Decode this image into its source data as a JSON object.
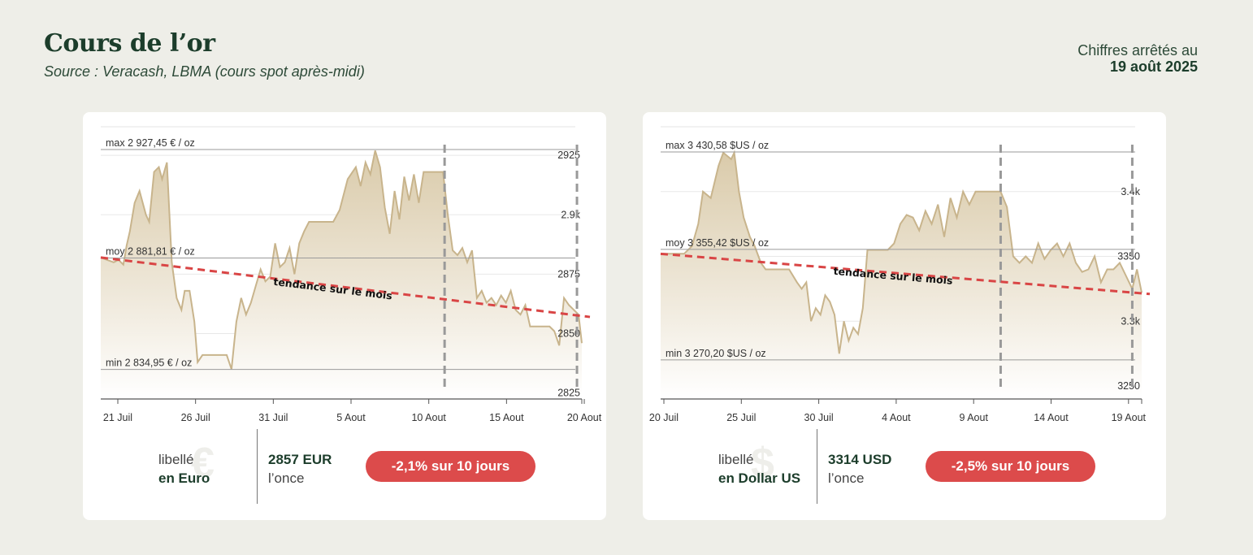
{
  "header": {
    "title": "Cours de l’or",
    "subtitle": "Source : Veracash, LBMA (cours spot après-midi)",
    "date_label": "Chiffres arrêtés au",
    "date_value": "19 août 2025"
  },
  "colors": {
    "line": "#c8b48c",
    "area_top": "#d8c8a6",
    "area_bottom": "#ffffff",
    "trend": "#d94545",
    "badge": "#dc4b4b",
    "vline": "#999999"
  },
  "chart_data": [
    {
      "type": "area",
      "id": "eur",
      "x_ticks": [
        "21 Juil",
        "26 Juil",
        "31 Juil",
        "5 Aout",
        "10 Aout",
        "15 Aout",
        "20 Aout"
      ],
      "x_range_days": [
        20.2,
        50.0
      ],
      "y_ticks": [
        {
          "value": 2825,
          "label": "2825"
        },
        {
          "value": 2850,
          "label": "2850"
        },
        {
          "value": 2875,
          "label": "2875"
        },
        {
          "value": 2900,
          "label": "2.9k"
        },
        {
          "value": 2925,
          "label": "2925"
        }
      ],
      "ylim": [
        2822.5,
        2937
      ],
      "ref_lines": [
        {
          "value": 2927.45,
          "label": "max 2 927,45 € / oz"
        },
        {
          "value": 2881.81,
          "label": "moy 2 881,81 € / oz"
        },
        {
          "value": 2834.95,
          "label": "min 2 834,95 € / oz"
        }
      ],
      "vlines_day": [
        41.5,
        49.7
      ],
      "trend": {
        "label": "tendance sur le mois",
        "start": 2882,
        "end": 2857
      },
      "series": {
        "x": [
          20.2,
          21.0,
          21.3,
          21.6,
          21.8,
          22.0,
          22.3,
          22.6,
          23.0,
          23.2,
          23.5,
          23.8,
          24.0,
          24.3,
          24.6,
          24.9,
          25.2,
          25.4,
          25.7,
          26.0,
          26.2,
          26.5,
          28.0,
          28.3,
          28.6,
          28.9,
          29.2,
          29.5,
          29.8,
          30.1,
          30.4,
          30.7,
          31.0,
          31.3,
          31.6,
          31.9,
          32.2,
          32.5,
          32.8,
          33.1,
          33.4,
          33.8,
          34.2,
          34.6,
          35.0,
          35.5,
          36.0,
          36.3,
          36.6,
          36.9,
          37.2,
          37.5,
          37.8,
          38.1,
          38.4,
          38.7,
          39.0,
          39.3,
          39.6,
          39.9,
          40.2,
          40.5,
          40.8,
          41.1,
          41.4,
          41.7,
          42.0,
          42.3,
          42.6,
          42.9,
          43.2,
          43.5,
          43.8,
          44.1,
          44.4,
          44.7,
          45.0,
          45.3,
          45.6,
          45.9,
          46.2,
          46.5,
          46.8,
          47.1,
          47.4,
          47.7,
          48.0,
          48.3,
          48.6,
          48.9,
          49.2,
          49.5,
          49.8,
          50.0
        ],
        "y": [
          2882,
          2880,
          2881,
          2879,
          2887,
          2893,
          2905,
          2910,
          2900,
          2897,
          2918,
          2920,
          2915,
          2922,
          2880,
          2865,
          2860,
          2868,
          2868,
          2855,
          2838,
          2841,
          2841,
          2835,
          2855,
          2865,
          2858,
          2863,
          2870,
          2877,
          2872,
          2874,
          2888,
          2878,
          2880,
          2886,
          2875,
          2888,
          2893,
          2897,
          2897,
          2897,
          2897,
          2897,
          2902,
          2915,
          2920,
          2912,
          2922,
          2917,
          2927,
          2920,
          2903,
          2892,
          2910,
          2898,
          2916,
          2906,
          2917,
          2905,
          2918,
          2918,
          2918,
          2918,
          2918,
          2900,
          2885,
          2883,
          2886,
          2880,
          2885,
          2865,
          2868,
          2863,
          2865,
          2862,
          2866,
          2863,
          2868,
          2860,
          2858,
          2862,
          2853,
          2853,
          2853,
          2853,
          2853,
          2851,
          2845,
          2865,
          2862,
          2860,
          2858,
          2846
        ]
      }
    },
    {
      "type": "area",
      "id": "usd",
      "x_ticks": [
        "20 Juil",
        "25 Juil",
        "30 Juil",
        "4 Aout",
        "9 Aout",
        "14 Aout",
        "19 Aout"
      ],
      "x_range_days": [
        19.3,
        50.0
      ],
      "y_ticks": [
        {
          "value": 3250,
          "label": "3250"
        },
        {
          "value": 3300,
          "label": "3.3k"
        },
        {
          "value": 3350,
          "label": "3350"
        },
        {
          "value": 3400,
          "label": "3.4k"
        }
      ],
      "ylim": [
        3240,
        3450
      ],
      "ref_lines": [
        {
          "value": 3430.58,
          "label": "max 3 430,58 $US / oz"
        },
        {
          "value": 3355.42,
          "label": "moy 3 355,42 $US / oz"
        },
        {
          "value": 3270.2,
          "label": "min 3 270,20 $US / oz"
        }
      ],
      "vlines_day": [
        41.0,
        49.4
      ],
      "trend": {
        "label": "tendance sur le mois",
        "start": 3352,
        "end": 3321
      },
      "series": {
        "x": [
          19.3,
          20.2,
          20.8,
          21.3,
          21.7,
          22.0,
          22.5,
          23.0,
          23.3,
          23.5,
          23.8,
          24.0,
          24.3,
          24.6,
          25.0,
          25.3,
          25.7,
          26.0,
          26.3,
          26.6,
          27.0,
          27.5,
          28.0,
          28.3,
          28.6,
          28.9,
          29.2,
          29.5,
          29.8,
          30.1,
          30.4,
          30.7,
          31.0,
          31.3,
          31.6,
          31.9,
          32.2,
          32.5,
          32.8,
          33.1,
          33.4,
          33.8,
          34.2,
          34.6,
          35.0,
          35.4,
          35.8,
          36.2,
          36.6,
          37.0,
          37.4,
          37.8,
          38.2,
          38.6,
          39.0,
          39.4,
          39.8,
          40.2,
          40.6,
          41.0,
          41.4,
          41.8,
          42.2,
          42.6,
          43.0,
          43.4,
          43.8,
          44.2,
          44.6,
          45.0,
          45.4,
          45.8,
          46.2,
          46.6,
          47.0,
          47.4,
          47.8,
          48.2,
          48.6,
          49.0,
          49.4,
          49.7,
          50.0
        ],
        "y": [
          3352,
          3352,
          3352,
          3358,
          3375,
          3400,
          3395,
          3420,
          3430,
          3428,
          3425,
          3430,
          3400,
          3380,
          3365,
          3358,
          3345,
          3340,
          3340,
          3340,
          3340,
          3340,
          3330,
          3325,
          3330,
          3300,
          3310,
          3305,
          3320,
          3315,
          3305,
          3275,
          3300,
          3285,
          3295,
          3290,
          3310,
          3355,
          3355,
          3355,
          3355,
          3355,
          3360,
          3375,
          3382,
          3380,
          3370,
          3385,
          3375,
          3390,
          3365,
          3395,
          3380,
          3400,
          3390,
          3400,
          3400,
          3400,
          3400,
          3400,
          3388,
          3350,
          3345,
          3350,
          3345,
          3360,
          3348,
          3355,
          3360,
          3350,
          3360,
          3345,
          3338,
          3340,
          3350,
          3330,
          3340,
          3340,
          3345,
          3335,
          3325,
          3340,
          3322
        ]
      }
    }
  ],
  "cards": {
    "eur": {
      "libelle": "libellé",
      "currency": "en Euro",
      "ghost": "€",
      "price": "2857 EUR",
      "unit": "l’once",
      "change": "-2,1% sur 10 jours"
    },
    "usd": {
      "libelle": "libellé",
      "currency": "en Dollar US",
      "ghost": "$",
      "price": "3314 USD",
      "unit": "l’once",
      "change": "-2,5% sur 10 jours"
    }
  }
}
